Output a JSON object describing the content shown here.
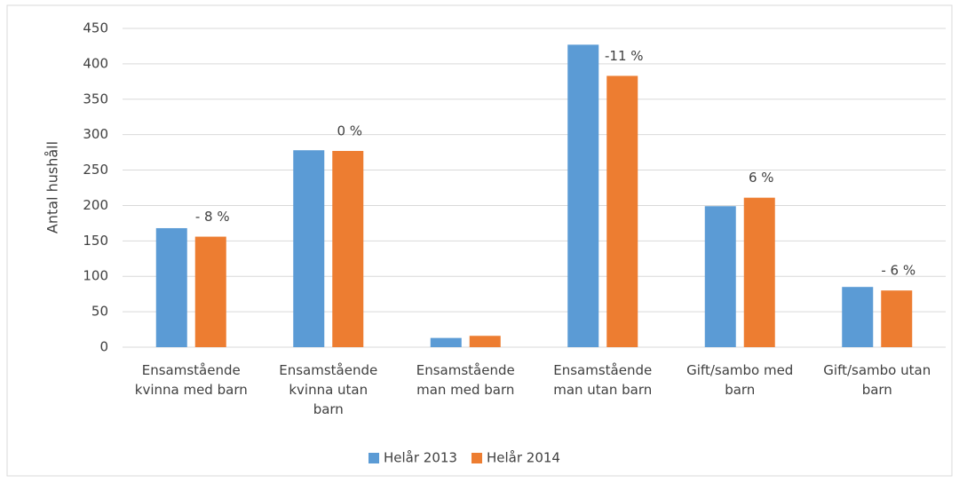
{
  "chart_data": {
    "type": "bar",
    "y_axis_label": "Antal hushåll",
    "categories": [
      "Ensamstående kvinna med barn",
      "Ensamstående kvinna utan barn",
      "Ensamstående man med barn",
      "Ensamstående man utan barn",
      "Gift/sambo med barn",
      "Gift/sambo utan barn"
    ],
    "series": [
      {
        "name": "Helår 2013",
        "color": "#5b9bd5",
        "values": [
          168,
          278,
          13,
          427,
          199,
          85
        ]
      },
      {
        "name": "Helår 2014",
        "color": "#ed7d31",
        "values": [
          156,
          277,
          16,
          383,
          211,
          80
        ]
      }
    ],
    "annotations": [
      "- 8 %",
      "0 %",
      null,
      "-11 %",
      "6 %",
      "- 6 %"
    ],
    "ylim": [
      0,
      450
    ],
    "yticks": [
      0,
      50,
      100,
      150,
      200,
      250,
      300,
      350,
      400,
      450
    ],
    "grid": true,
    "legend": "bottom"
  }
}
